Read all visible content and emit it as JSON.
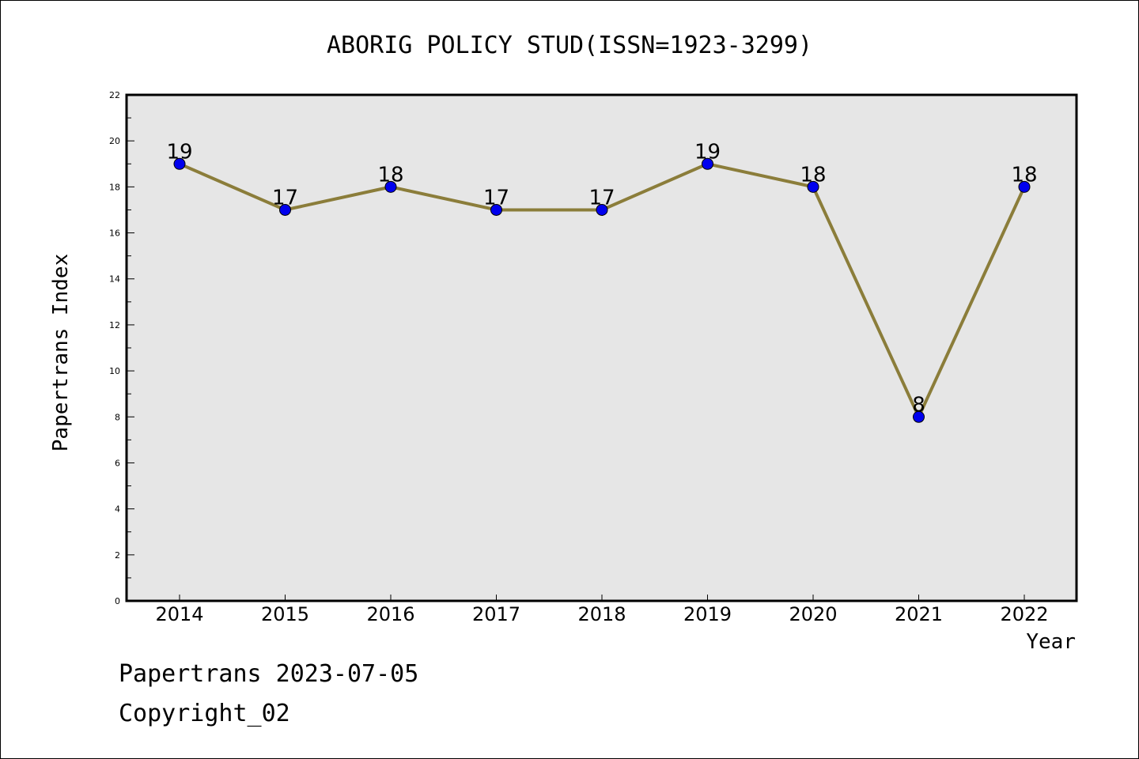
{
  "chart_data": {
    "type": "line",
    "title": "ABORIG POLICY STUD(ISSN=1923-3299)",
    "xlabel": "Year",
    "ylabel": "Papertrans Index",
    "x": [
      "2014",
      "2015",
      "2016",
      "2017",
      "2018",
      "2019",
      "2020",
      "2021",
      "2022"
    ],
    "values": [
      19,
      17,
      18,
      17,
      17,
      19,
      18,
      8,
      18
    ],
    "ylim": [
      0,
      22
    ],
    "yticks": [
      0,
      2,
      4,
      6,
      8,
      10,
      12,
      14,
      16,
      18,
      20,
      22
    ],
    "grid": false,
    "colors": {
      "line": "#8b7d3a",
      "marker": "#0000ee",
      "plot_background": "#e6e6e6"
    }
  },
  "footer": {
    "date_line": "Papertrans 2023-07-05",
    "copyright": "Copyright_02"
  }
}
